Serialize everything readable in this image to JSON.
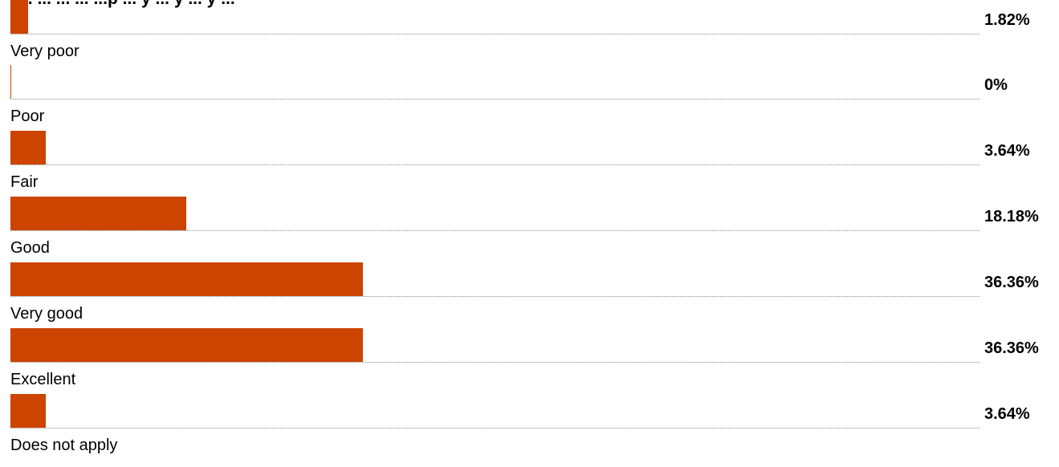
{
  "title": "y... ... ... ... ...p ... y ... y ... y ...",
  "colors": {
    "bar": "#cc4400",
    "dots": "#8a8a8a"
  },
  "chart_data": {
    "type": "bar",
    "orientation": "horizontal",
    "title": "",
    "categories": [
      "Very poor",
      "Poor",
      "Fair",
      "Good",
      "Very good",
      "Excellent",
      "Does not apply"
    ],
    "values": [
      1.82,
      0,
      3.64,
      18.18,
      36.36,
      36.36,
      3.64
    ],
    "value_labels": [
      "1.82%",
      "0%",
      "3.64%",
      "18.18%",
      "36.36%",
      "36.36%",
      "3.64%"
    ],
    "xlim": [
      0,
      100
    ],
    "grid": false
  }
}
